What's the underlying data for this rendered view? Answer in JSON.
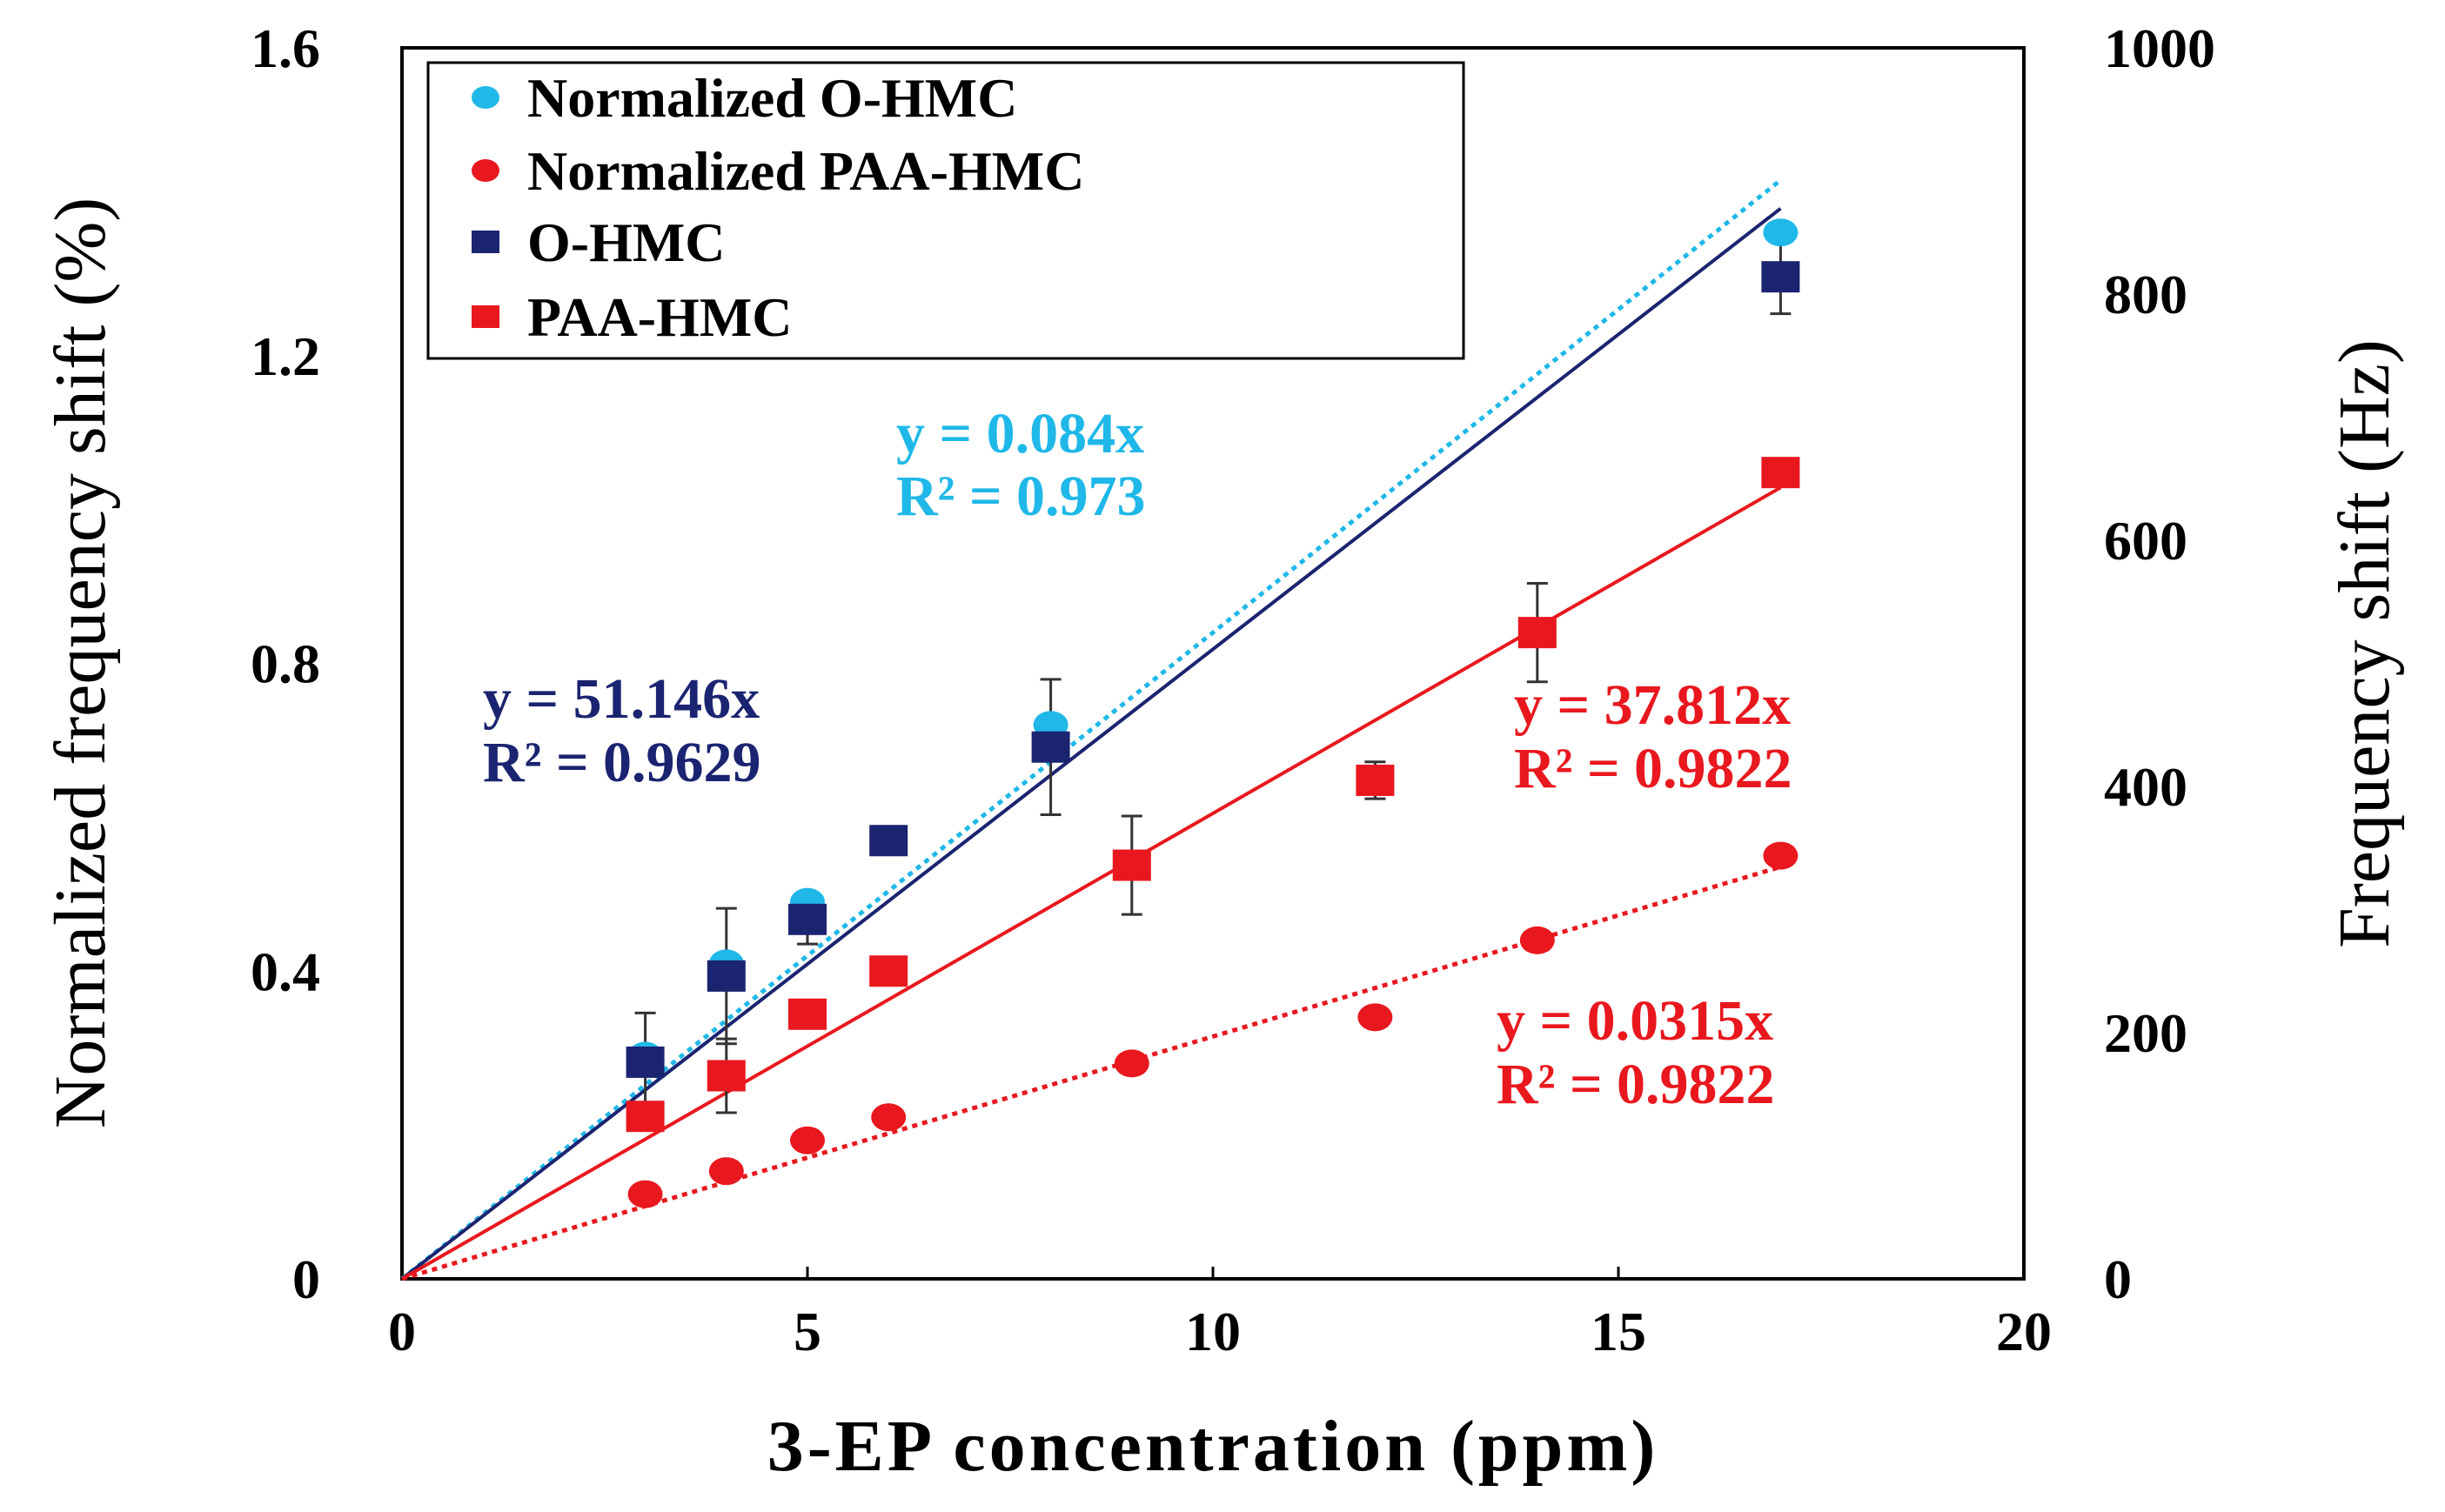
{
  "chart_data": {
    "type": "scatter",
    "xlabel": "3-EP concentration (ppm)",
    "ylabel": "Normalized frequency shift (%)",
    "y2label": "Frequency shift (Hz)",
    "xlim": [
      0,
      20
    ],
    "ylim": [
      0,
      1.6
    ],
    "y2lim": [
      0,
      1000
    ],
    "x_ticks": [
      "0",
      "5",
      "10",
      "15",
      "20"
    ],
    "y_ticks": [
      "0",
      "0.4",
      "0.8",
      "1.2",
      "1.6"
    ],
    "y2_ticks": [
      "0",
      "200",
      "400",
      "600",
      "800",
      "1000"
    ],
    "grid": false,
    "legend_position": "top-left",
    "colors": {
      "norm_o_hmc": "#1fb8e8",
      "norm_paa_hmc": "#e8181e",
      "o_hmc": "#1b2470",
      "paa_hmc": "#e8181e"
    },
    "series": [
      {
        "name": "Normalized O-HMC",
        "marker": "circle",
        "axis": "left",
        "x": [
          3,
          4,
          5,
          8,
          17
        ],
        "y": [
          0.29,
          0.41,
          0.49,
          0.72,
          1.36
        ]
      },
      {
        "name": "Normalized PAA-HMC",
        "marker": "circle",
        "axis": "left",
        "x": [
          3,
          4,
          5,
          6,
          9,
          12,
          14,
          17
        ],
        "y": [
          0.11,
          0.14,
          0.18,
          0.21,
          0.28,
          0.34,
          0.44,
          0.55
        ]
      },
      {
        "name": "O-HMC",
        "marker": "square",
        "axis": "right",
        "x": [
          3,
          4,
          5,
          6,
          8,
          17
        ],
        "y": [
          176,
          246,
          292,
          356,
          432,
          814
        ],
        "err": [
          40,
          55,
          20,
          0,
          55,
          30
        ]
      },
      {
        "name": "PAA-HMC",
        "marker": "square",
        "axis": "right",
        "x": [
          3,
          4,
          5,
          6,
          9,
          12,
          14,
          17
        ],
        "y": [
          132,
          165,
          215,
          250,
          336,
          405,
          525,
          655
        ],
        "err": [
          0,
          30,
          0,
          0,
          40,
          15,
          40,
          0
        ]
      }
    ],
    "trendlines": [
      {
        "series": "Normalized O-HMC",
        "slope": 0.084,
        "axis": "left",
        "style": "dotted",
        "x_end": 17
      },
      {
        "series": "Normalized PAA-HMC",
        "slope": 0.0315,
        "axis": "left",
        "style": "dotted",
        "x_end": 17
      },
      {
        "series": "O-HMC",
        "slope": 51.146,
        "axis": "right",
        "style": "solid",
        "x_end": 17
      },
      {
        "series": "PAA-HMC",
        "slope": 37.812,
        "axis": "right",
        "style": "solid",
        "x_end": 17
      }
    ],
    "annotations": [
      {
        "series": "Normalized O-HMC",
        "eq": "y = 0.084x",
        "r2": "R² = 0.973"
      },
      {
        "series": "O-HMC",
        "eq": "y = 51.146x",
        "r2": "R² = 0.9629"
      },
      {
        "series": "PAA-HMC",
        "eq": "y = 37.812x",
        "r2": "R² = 0.9822"
      },
      {
        "series": "Normalized PAA-HMC",
        "eq": "y = 0.0315x",
        "r2": "R² = 0.9822"
      }
    ]
  }
}
